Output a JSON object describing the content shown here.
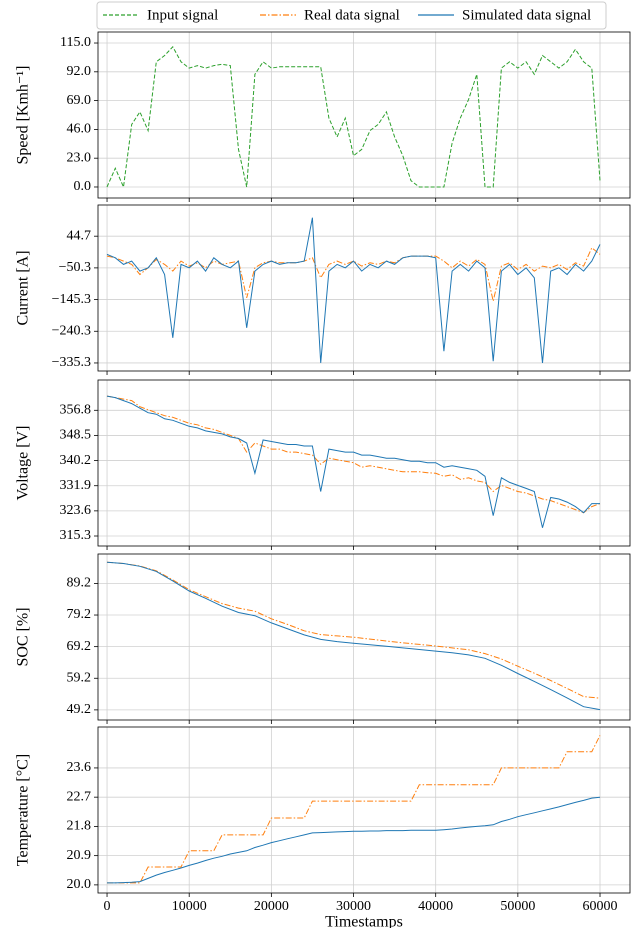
{
  "chart_data": [
    {
      "type": "line",
      "ylabel": "Speed [Kmh⁻¹]",
      "x": [
        0,
        1000,
        2000,
        3000,
        4000,
        5000,
        6000,
        7000,
        8000,
        9000,
        10000,
        11000,
        12000,
        13000,
        14000,
        15000,
        16000,
        17000,
        18000,
        19000,
        20000,
        21000,
        22000,
        23000,
        24000,
        25000,
        26000,
        27000,
        28000,
        29000,
        30000,
        31000,
        32000,
        33000,
        34000,
        35000,
        36000,
        37000,
        38000,
        39000,
        40000,
        41000,
        42000,
        43000,
        44000,
        45000,
        46000,
        47000,
        48000,
        49000,
        50000,
        51000,
        52000,
        53000,
        54000,
        55000,
        56000,
        57000,
        58000,
        59000,
        60000
      ],
      "series": [
        {
          "name": "Input signal",
          "color": "#2ca02c",
          "linestyle": "dashed",
          "values": [
            0,
            15,
            0,
            50,
            60,
            45,
            100,
            105,
            112,
            100,
            95,
            97,
            95,
            97,
            98,
            97,
            30,
            0,
            90,
            100,
            95,
            96,
            96,
            96,
            96,
            96,
            96,
            55,
            40,
            55,
            25,
            30,
            45,
            50,
            60,
            40,
            25,
            5,
            0,
            0,
            0,
            0,
            35,
            55,
            70,
            90,
            0,
            0,
            95,
            100,
            95,
            100,
            90,
            105,
            100,
            95,
            100,
            110,
            100,
            95,
            5
          ]
        }
      ],
      "xlim": [
        -1100,
        63650
      ],
      "xticks": [
        0,
        10000,
        20000,
        30000,
        40000,
        50000,
        60000
      ],
      "ylim": [
        -8.8,
        123.8
      ],
      "yticks": [
        {
          "value": 0,
          "label": "0.0"
        },
        {
          "value": 23,
          "label": "23.0"
        },
        {
          "value": 46,
          "label": "46.0"
        },
        {
          "value": 69,
          "label": "69.0"
        },
        {
          "value": 92,
          "label": "92.0"
        },
        {
          "value": 115,
          "label": "115.0"
        }
      ],
      "grid": true
    },
    {
      "type": "line",
      "ylabel": "Current [A]",
      "x": [
        0,
        1000,
        2000,
        3000,
        4000,
        5000,
        6000,
        7000,
        8000,
        9000,
        10000,
        11000,
        12000,
        13000,
        14000,
        15000,
        16000,
        17000,
        18000,
        19000,
        20000,
        21000,
        22000,
        23000,
        24000,
        25000,
        26000,
        27000,
        28000,
        29000,
        30000,
        31000,
        32000,
        33000,
        34000,
        35000,
        36000,
        37000,
        38000,
        39000,
        40000,
        41000,
        42000,
        43000,
        44000,
        45000,
        46000,
        47000,
        48000,
        49000,
        50000,
        51000,
        52000,
        53000,
        54000,
        55000,
        56000,
        57000,
        58000,
        59000,
        60000
      ],
      "series": [
        {
          "name": "Real data signal",
          "color": "#ff7f0e",
          "linestyle": "dashdot",
          "values": [
            -15,
            -20,
            -30,
            -40,
            -70,
            -50,
            -25,
            -40,
            -60,
            -30,
            -45,
            -35,
            -50,
            -30,
            -40,
            -35,
            -30,
            -140,
            -50,
            -35,
            -30,
            -35,
            -35,
            -35,
            -30,
            -20,
            -80,
            -40,
            -30,
            -40,
            -30,
            -45,
            -35,
            -40,
            -30,
            -35,
            -20,
            -15,
            -15,
            -15,
            -15,
            -30,
            -50,
            -30,
            -45,
            -25,
            -40,
            -150,
            -45,
            -35,
            -55,
            -40,
            -60,
            -45,
            -50,
            -40,
            -55,
            -35,
            -45,
            10,
            -10
          ]
        },
        {
          "name": "Simulated data signal",
          "color": "#1f77b4",
          "linestyle": "solid",
          "values": [
            -10,
            -20,
            -40,
            -30,
            -60,
            -50,
            -20,
            -70,
            -260,
            -40,
            -50,
            -30,
            -60,
            -20,
            -40,
            -50,
            -30,
            -230,
            -60,
            -40,
            -30,
            -40,
            -35,
            -35,
            -30,
            100,
            -335,
            -60,
            -40,
            -50,
            -30,
            -60,
            -40,
            -50,
            -30,
            -40,
            -20,
            -15,
            -15,
            -15,
            -20,
            -300,
            -60,
            -40,
            -60,
            -30,
            -50,
            -330,
            -60,
            -40,
            -70,
            -50,
            -80,
            -335,
            -60,
            -50,
            -70,
            -40,
            -60,
            -30,
            20
          ]
        }
      ],
      "xlim": [
        -1100,
        63650
      ],
      "xticks": [
        0,
        10000,
        20000,
        30000,
        40000,
        50000,
        60000
      ],
      "ylim": [
        -359.4,
        138.2
      ],
      "yticks": [
        44.7,
        {
          "value": -50.3,
          "label": "−50.3"
        },
        {
          "value": -145.3,
          "label": "−145.3"
        },
        {
          "value": -240.3,
          "label": "−240.3"
        },
        {
          "value": -335.3,
          "label": "−335.3"
        }
      ],
      "grid": true
    },
    {
      "type": "line",
      "ylabel": "Voltage [V]",
      "x": [
        0,
        1000,
        2000,
        3000,
        4000,
        5000,
        6000,
        7000,
        8000,
        9000,
        10000,
        11000,
        12000,
        13000,
        14000,
        15000,
        16000,
        17000,
        18000,
        19000,
        20000,
        21000,
        22000,
        23000,
        24000,
        25000,
        26000,
        27000,
        28000,
        29000,
        30000,
        31000,
        32000,
        33000,
        34000,
        35000,
        36000,
        37000,
        38000,
        39000,
        40000,
        41000,
        42000,
        43000,
        44000,
        45000,
        46000,
        47000,
        48000,
        49000,
        50000,
        51000,
        52000,
        53000,
        54000,
        55000,
        56000,
        57000,
        58000,
        59000,
        60000
      ],
      "series": [
        {
          "color": "#ff7f0e",
          "linestyle": "dashdot",
          "values": [
            361.5,
            361,
            360.5,
            360,
            358,
            357,
            356,
            355,
            354.5,
            353.5,
            352.5,
            352,
            351,
            350.5,
            349.5,
            348.5,
            347.5,
            343,
            346,
            345,
            344,
            344,
            343,
            343,
            342.5,
            342,
            339,
            341,
            340.5,
            340,
            339.5,
            338,
            338.5,
            338,
            337.5,
            337,
            336.5,
            336.5,
            336.5,
            336.2,
            336,
            335,
            335.5,
            334,
            334.5,
            333.5,
            333,
            330,
            332,
            331,
            330,
            329.5,
            328.5,
            327.5,
            327,
            326,
            325,
            324,
            323,
            325,
            326
          ]
        },
        {
          "color": "#1f77b4",
          "linestyle": "solid",
          "values": [
            361.5,
            361,
            360,
            359,
            357.5,
            356,
            355.5,
            354,
            353.5,
            352.5,
            351.5,
            351,
            350,
            349.5,
            349,
            348,
            347.5,
            346,
            336,
            347,
            346.5,
            346,
            345.5,
            345.5,
            345,
            345,
            330,
            344,
            343.5,
            343,
            343,
            342,
            342,
            341.5,
            341,
            341,
            340.5,
            340,
            340,
            339.5,
            339.5,
            338,
            338.5,
            338,
            337.5,
            337,
            335,
            322,
            334.5,
            333,
            332,
            331,
            330,
            318,
            328,
            327.5,
            326.5,
            325,
            323,
            326,
            326
          ]
        }
      ],
      "xlim": [
        -1100,
        63650
      ],
      "xticks": [
        0,
        10000,
        20000,
        30000,
        40000,
        50000,
        60000
      ],
      "ylim": [
        312.0,
        366.8
      ],
      "yticks": [
        356.8,
        348.5,
        340.2,
        331.9,
        323.6,
        315.3
      ],
      "grid": true
    },
    {
      "type": "line",
      "ylabel": "SOC [%]",
      "x": [
        0,
        2000,
        4000,
        6000,
        8000,
        10000,
        12000,
        14000,
        16000,
        18000,
        20000,
        22000,
        24000,
        26000,
        28000,
        30000,
        32000,
        34000,
        36000,
        38000,
        40000,
        42000,
        44000,
        46000,
        48000,
        50000,
        52000,
        54000,
        56000,
        58000,
        60000
      ],
      "series": [
        {
          "color": "#ff7f0e",
          "linestyle": "dashdot",
          "values": [
            95.9,
            95.5,
            94.7,
            93.2,
            90.3,
            87.2,
            85,
            82.8,
            81.4,
            80.4,
            78,
            76.2,
            74.2,
            73,
            72.6,
            72.2,
            71.6,
            71,
            70.4,
            69.9,
            69.4,
            68.8,
            68.2,
            67,
            65.3,
            63,
            60.8,
            58.5,
            56,
            53.4,
            52.9
          ]
        },
        {
          "color": "#1f77b4",
          "linestyle": "solid",
          "values": [
            95.9,
            95.5,
            94.6,
            93,
            90,
            86.8,
            84.5,
            82,
            80,
            79,
            76.7,
            74.8,
            72.9,
            71.5,
            70.8,
            70.3,
            69.8,
            69.3,
            68.8,
            68.3,
            67.8,
            67.3,
            66.6,
            65.5,
            63.3,
            60.7,
            58.2,
            55.6,
            53,
            50.2,
            49.3
          ]
        }
      ],
      "xlim": [
        -1100,
        63650
      ],
      "xticks": [
        0,
        10000,
        20000,
        30000,
        40000,
        50000,
        60000
      ],
      "ylim": [
        46.0,
        98.5
      ],
      "yticks": [
        89.2,
        79.2,
        69.2,
        59.2,
        49.2
      ],
      "grid": true
    },
    {
      "type": "line",
      "ylabel": "Temperature [°C]",
      "xlabel": "Timestamps",
      "x": [
        0,
        1000,
        2000,
        3000,
        4000,
        5000,
        6000,
        7000,
        8000,
        9000,
        10000,
        11000,
        12000,
        13000,
        14000,
        15000,
        16000,
        17000,
        18000,
        19000,
        20000,
        21000,
        22000,
        23000,
        24000,
        25000,
        26000,
        27000,
        28000,
        29000,
        30000,
        31000,
        32000,
        33000,
        34000,
        35000,
        36000,
        37000,
        38000,
        39000,
        40000,
        41000,
        42000,
        43000,
        44000,
        45000,
        46000,
        47000,
        48000,
        49000,
        50000,
        51000,
        52000,
        53000,
        54000,
        55000,
        56000,
        57000,
        58000,
        59000,
        60000
      ],
      "series": [
        {
          "color": "#ff7f0e",
          "linestyle": "dashdot",
          "values": [
            20.06,
            20.06,
            20.06,
            20.06,
            20.06,
            20.55,
            20.55,
            20.55,
            20.55,
            20.55,
            21.05,
            21.05,
            21.05,
            21.05,
            21.54,
            21.54,
            21.54,
            21.54,
            21.54,
            21.54,
            22.06,
            22.06,
            22.06,
            22.06,
            22.06,
            22.58,
            22.58,
            22.58,
            22.58,
            22.58,
            22.58,
            22.58,
            22.58,
            22.58,
            22.58,
            22.58,
            22.58,
            22.58,
            23.08,
            23.08,
            23.08,
            23.08,
            23.08,
            23.08,
            23.08,
            23.08,
            23.08,
            23.08,
            23.6,
            23.6,
            23.6,
            23.6,
            23.6,
            23.6,
            23.6,
            23.6,
            24.1,
            24.1,
            24.1,
            24.1,
            24.6
          ]
        },
        {
          "color": "#1f77b4",
          "linestyle": "solid",
          "values": [
            20.06,
            20.06,
            20.07,
            20.08,
            20.1,
            20.2,
            20.3,
            20.38,
            20.45,
            20.52,
            20.6,
            20.67,
            20.75,
            20.82,
            20.88,
            20.95,
            21.0,
            21.05,
            21.15,
            21.22,
            21.3,
            21.36,
            21.42,
            21.48,
            21.54,
            21.6,
            21.61,
            21.62,
            21.63,
            21.64,
            21.65,
            21.65,
            21.66,
            21.66,
            21.67,
            21.67,
            21.67,
            21.68,
            21.68,
            21.68,
            21.68,
            21.7,
            21.72,
            21.75,
            21.78,
            21.8,
            21.82,
            21.85,
            21.95,
            22.02,
            22.1,
            22.16,
            22.22,
            22.28,
            22.34,
            22.4,
            22.47,
            22.54,
            22.6,
            22.67,
            22.7
          ]
        }
      ],
      "xlim": [
        -1100,
        63650
      ],
      "xticks": [
        0,
        10000,
        20000,
        30000,
        40000,
        50000,
        60000
      ],
      "ylim": [
        19.75,
        24.86
      ],
      "yticks": [
        {
          "value": 20.0,
          "label": "20.0"
        },
        20.9,
        21.8,
        22.7,
        23.6
      ],
      "grid": true
    }
  ]
}
